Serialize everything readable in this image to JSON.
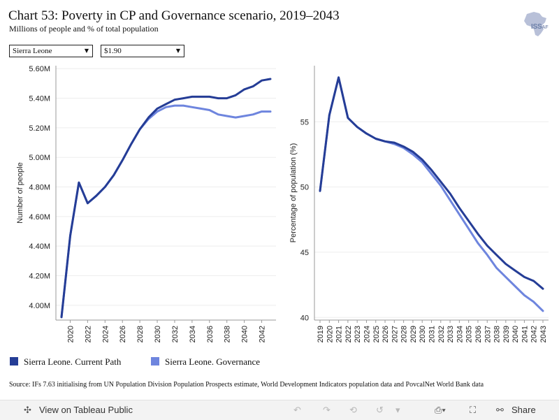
{
  "title": "Chart 53: Poverty in CP and Governance scenario, 2019–2043",
  "subtitle": "Millions of people and % of total population",
  "logo": {
    "text": "ISS",
    "suffix": "AF"
  },
  "filters": {
    "country": "Sierra Leone",
    "threshold": "$1.90"
  },
  "legend": {
    "current_path": "Sierra Leone. Current Path",
    "governance": "Sierra Leone. Governance"
  },
  "colors": {
    "current_path": "#253d96",
    "governance": "#6e85de",
    "gridline": "#eeeeee",
    "axis": "#999999"
  },
  "source": "Source: IFs 7.63 initialising from UN Population Division Population Prospects estimate, World Development Indicators population data and PovcalNet World Bank data",
  "toolbar": {
    "view_label": "View on Tableau Public",
    "share_label": "Share"
  },
  "chart_data": [
    {
      "type": "line",
      "xlabel": "",
      "ylabel": "Number of people",
      "ylim": [
        3.9,
        5.62
      ],
      "xlim": [
        2019,
        2043
      ],
      "yticks": [
        4.0,
        4.2,
        4.4,
        4.6,
        4.8,
        5.0,
        5.2,
        5.4,
        5.6
      ],
      "ytick_labels": [
        "4.00M",
        "4.20M",
        "4.40M",
        "4.60M",
        "4.80M",
        "5.00M",
        "5.20M",
        "5.40M",
        "5.60M"
      ],
      "xticks": [
        2020,
        2022,
        2024,
        2026,
        2028,
        2030,
        2032,
        2034,
        2036,
        2038,
        2040,
        2042
      ],
      "xtick_labels": [
        "2020",
        "2022",
        "2024",
        "2026",
        "2028",
        "2030",
        "2032",
        "2034",
        "2036",
        "2038",
        "2040",
        "2042"
      ],
      "x": [
        2019,
        2020,
        2021,
        2022,
        2023,
        2024,
        2025,
        2026,
        2027,
        2028,
        2029,
        2030,
        2031,
        2032,
        2033,
        2034,
        2035,
        2036,
        2037,
        2038,
        2039,
        2040,
        2041,
        2042,
        2043
      ],
      "series": [
        {
          "name": "Sierra Leone. Current Path",
          "values": [
            3.92,
            4.47,
            4.83,
            4.69,
            4.74,
            4.8,
            4.88,
            4.98,
            5.09,
            5.19,
            5.27,
            5.33,
            5.36,
            5.39,
            5.4,
            5.41,
            5.41,
            5.41,
            5.4,
            5.4,
            5.42,
            5.46,
            5.48,
            5.52,
            5.53
          ]
        },
        {
          "name": "Sierra Leone. Governance",
          "values": [
            3.92,
            4.47,
            4.83,
            4.69,
            4.74,
            4.8,
            4.88,
            4.98,
            5.09,
            5.19,
            5.26,
            5.31,
            5.34,
            5.35,
            5.35,
            5.34,
            5.33,
            5.32,
            5.29,
            5.28,
            5.27,
            5.28,
            5.29,
            5.31,
            5.31
          ]
        }
      ]
    },
    {
      "type": "line",
      "xlabel": "",
      "ylabel": "Percentage of population (%)",
      "ylim": [
        39.8,
        59.3
      ],
      "xlim": [
        2019,
        2043
      ],
      "yticks": [
        40,
        45,
        50,
        55
      ],
      "ytick_labels": [
        "40",
        "45",
        "50",
        "55"
      ],
      "xticks": [
        2019,
        2020,
        2021,
        2022,
        2023,
        2024,
        2025,
        2026,
        2027,
        2028,
        2029,
        2030,
        2031,
        2032,
        2033,
        2034,
        2035,
        2036,
        2037,
        2038,
        2039,
        2040,
        2041,
        2042,
        2043
      ],
      "xtick_labels": [
        "2019",
        "2020",
        "2021",
        "2022",
        "2023",
        "2024",
        "2025",
        "2026",
        "2027",
        "2028",
        "2029",
        "2030",
        "2031",
        "2032",
        "2033",
        "2034",
        "2035",
        "2036",
        "2037",
        "2038",
        "2039",
        "2040",
        "2041",
        "2042",
        "2043"
      ],
      "x": [
        2019,
        2020,
        2021,
        2022,
        2023,
        2024,
        2025,
        2026,
        2027,
        2028,
        2029,
        2030,
        2031,
        2032,
        2033,
        2034,
        2035,
        2036,
        2037,
        2038,
        2039,
        2040,
        2041,
        2042,
        2043
      ],
      "series": [
        {
          "name": "Sierra Leone. Current Path",
          "values": [
            49.7,
            55.5,
            58.4,
            55.3,
            54.6,
            54.1,
            53.7,
            53.5,
            53.4,
            53.1,
            52.7,
            52.1,
            51.3,
            50.4,
            49.5,
            48.4,
            47.4,
            46.4,
            45.5,
            44.8,
            44.1,
            43.6,
            43.1,
            42.8,
            42.2
          ]
        },
        {
          "name": "Sierra Leone. Governance",
          "values": [
            49.7,
            55.5,
            58.4,
            55.3,
            54.6,
            54.1,
            53.7,
            53.5,
            53.3,
            53.0,
            52.5,
            51.9,
            51.0,
            50.1,
            49.0,
            47.9,
            46.8,
            45.7,
            44.8,
            43.8,
            43.1,
            42.4,
            41.7,
            41.2,
            40.5
          ]
        }
      ]
    }
  ]
}
